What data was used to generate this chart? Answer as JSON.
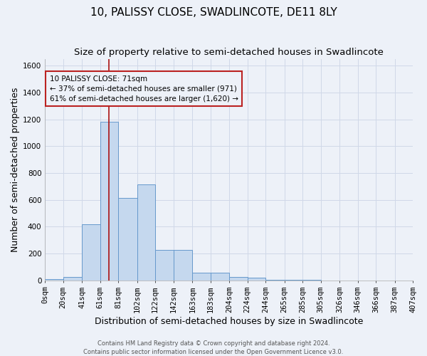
{
  "title": "10, PALISSY CLOSE, SWADLINCOTE, DE11 8LY",
  "subtitle": "Size of property relative to semi-detached houses in Swadlincote",
  "xlabel": "Distribution of semi-detached houses by size in Swadlincote",
  "ylabel": "Number of semi-detached properties",
  "footnote1": "Contains HM Land Registry data © Crown copyright and database right 2024.",
  "footnote2": "Contains public sector information licensed under the Open Government Licence v3.0.",
  "bin_edges": [
    0,
    20,
    41,
    61,
    81,
    102,
    122,
    142,
    163,
    183,
    204,
    224,
    244,
    265,
    285,
    305,
    326,
    346,
    366,
    387,
    407
  ],
  "bin_labels": [
    "0sqm",
    "20sqm",
    "41sqm",
    "61sqm",
    "81sqm",
    "102sqm",
    "122sqm",
    "142sqm",
    "163sqm",
    "183sqm",
    "204sqm",
    "224sqm",
    "244sqm",
    "265sqm",
    "285sqm",
    "305sqm",
    "326sqm",
    "346sqm",
    "366sqm",
    "387sqm",
    "407sqm"
  ],
  "bar_heights": [
    10,
    25,
    420,
    1185,
    615,
    715,
    225,
    225,
    60,
    55,
    25,
    20,
    5,
    3,
    2,
    1,
    1,
    0,
    0,
    0
  ],
  "bar_color": "#c5d8ee",
  "bar_edge_color": "#6699cc",
  "property_value": 71,
  "property_label": "10 PALISSY CLOSE: 71sqm",
  "pct_smaller": 37,
  "n_smaller": 971,
  "pct_larger": 61,
  "n_larger": 1620,
  "vline_color": "#aa1111",
  "annotation_box_color": "#bb2222",
  "ylim": [
    0,
    1650
  ],
  "yticks": [
    0,
    200,
    400,
    600,
    800,
    1000,
    1200,
    1400,
    1600
  ],
  "bg_color": "#edf1f8",
  "grid_color": "#d0d8e8",
  "title_fontsize": 11,
  "subtitle_fontsize": 9.5,
  "label_fontsize": 9,
  "tick_fontsize": 7.5,
  "footnote_fontsize": 6
}
